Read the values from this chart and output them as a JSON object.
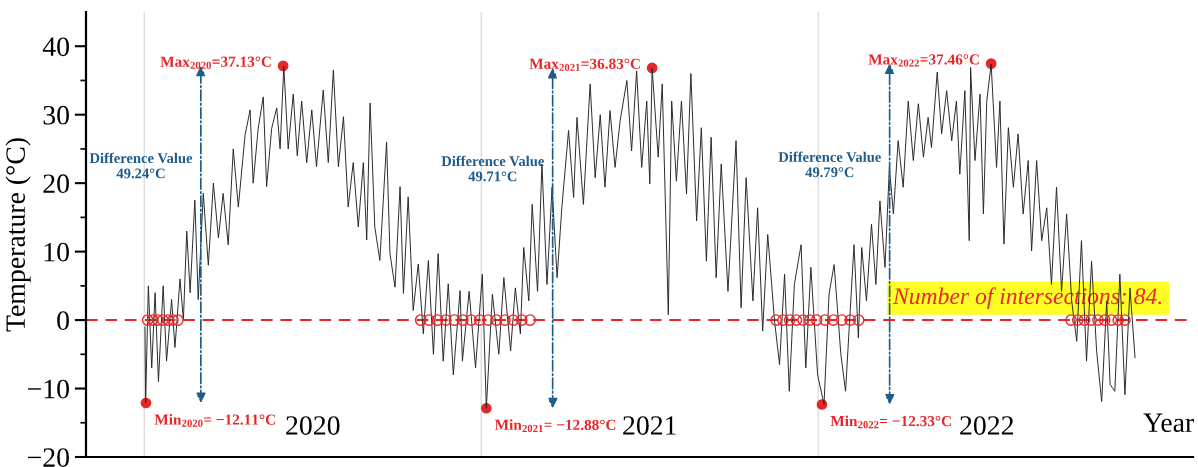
{
  "chart_data": {
    "type": "line",
    "xlabel": "Year",
    "ylabel": "Temperature (°C)",
    "xlim": [
      2019.827,
      2023.112
    ],
    "ylim": [
      -20,
      45
    ],
    "xticks": [
      {
        "value": 2020.5,
        "label": "2020"
      },
      {
        "value": 2021.5,
        "label": "2021"
      },
      {
        "value": 2022.5,
        "label": "2022"
      }
    ],
    "yticks": [
      -20,
      {
        "value": -15,
        "label": null
      },
      -10,
      {
        "value": -5,
        "label": null
      },
      0,
      {
        "value": 5,
        "label": null
      },
      10,
      {
        "value": 15,
        "label": null
      },
      20,
      {
        "value": 25,
        "label": null
      },
      30,
      {
        "value": 35,
        "label": null
      },
      40
    ],
    "grid": false,
    "legend": false,
    "series": [
      {
        "color": "#262626",
        "line_style": "solid",
        "x": [
          2020.002,
          2020.004,
          2020.012,
          2020.022,
          2020.032,
          2020.042,
          2020.056,
          2020.066,
          2020.081,
          2020.091,
          2020.106,
          2020.116,
          2020.126,
          2020.136,
          2020.15,
          2020.16,
          2020.175,
          2020.19,
          2020.205,
          2020.22,
          2020.234,
          2020.249,
          2020.264,
          2020.279,
          2020.299,
          2020.314,
          2020.323,
          2020.338,
          2020.353,
          2020.363,
          2020.378,
          2020.393,
          2020.403,
          2020.414,
          2020.427,
          2020.442,
          2020.454,
          2020.467,
          2020.482,
          2020.497,
          2020.511,
          2020.531,
          2020.546,
          2020.561,
          2020.576,
          2020.591,
          2020.605,
          2020.62,
          2020.635,
          2020.65,
          2020.66,
          2020.67,
          2020.684,
          2020.699,
          2020.719,
          2020.729,
          2020.744,
          2020.759,
          2020.769,
          2020.783,
          2020.798,
          2020.813,
          2020.828,
          2020.843,
          2020.858,
          2020.872,
          2020.887,
          2020.902,
          2020.917,
          2020.937,
          2020.944,
          2020.964,
          2020.983,
          2021.003,
          2021.015,
          2021.033,
          2021.052,
          2021.067,
          2021.087,
          2021.101,
          2021.116,
          2021.126,
          2021.141,
          2021.151,
          2021.167,
          2021.18,
          2021.195,
          2021.21,
          2021.225,
          2021.239,
          2021.259,
          2021.274,
          2021.284,
          2021.303,
          2021.323,
          2021.338,
          2021.353,
          2021.367,
          2021.382,
          2021.397,
          2021.412,
          2021.432,
          2021.446,
          2021.461,
          2021.476,
          2021.491,
          2021.5,
          2021.507,
          2021.525,
          2021.537,
          2021.555,
          2021.565,
          2021.579,
          2021.594,
          2021.609,
          2021.622,
          2021.639,
          2021.653,
          2021.668,
          2021.682,
          2021.697,
          2021.712,
          2021.732,
          2021.756,
          2021.771,
          2021.786,
          2021.806,
          2021.82,
          2021.835,
          2021.85,
          2021.87,
          2021.885,
          2021.9,
          2021.914,
          2021.929,
          2021.949,
          2021.963,
          2021.978,
          2021.998,
          2022.017,
          2022.032,
          2022.047,
          2022.067,
          2022.081,
          2022.106,
          2022.119,
          2022.129,
          2022.143,
          2022.158,
          2022.171,
          2022.183,
          2022.198,
          2022.211,
          2022.223,
          2022.237,
          2022.252,
          2022.267,
          2022.282,
          2022.297,
          2022.312,
          2022.326,
          2022.336,
          2022.353,
          2022.366,
          2022.381,
          2022.396,
          2022.41,
          2022.42,
          2022.435,
          2022.448,
          2022.452,
          2022.465,
          2022.48,
          2022.49,
          2022.5,
          2022.513,
          2022.529,
          2022.539,
          2022.551,
          2022.564,
          2022.579,
          2022.593,
          2022.608,
          2022.623,
          2022.633,
          2022.648,
          2022.663,
          2022.678,
          2022.692,
          2022.707,
          2022.722,
          2022.737,
          2022.752,
          2022.767,
          2022.781,
          2022.796,
          2022.811,
          2022.826,
          2022.841,
          2022.856,
          2022.866,
          2022.88,
          2022.895,
          2022.91,
          2022.925,
          2022.94
        ],
        "values": [
          -1,
          -12.1,
          5,
          -7,
          4,
          -9,
          5,
          -6,
          3,
          -4,
          6,
          0,
          13,
          4,
          17.5,
          3,
          18.5,
          8,
          20,
          12,
          18.5,
          11,
          25,
          16.5,
          27,
          30.7,
          20,
          28,
          32.6,
          19.5,
          28,
          31,
          25,
          37.1,
          25,
          33,
          24,
          32,
          23,
          30.7,
          22.4,
          33.6,
          23,
          36.5,
          22.4,
          29.7,
          16.5,
          23,
          13.6,
          23,
          11.7,
          31.7,
          13.6,
          8.7,
          26,
          9.7,
          4.8,
          19.5,
          3.9,
          18,
          1.4,
          8.2,
          -2,
          8.7,
          -5,
          9.7,
          -6,
          5.3,
          -8,
          4.3,
          -6,
          4.2,
          -7,
          6.7,
          -12.9,
          3.8,
          -5,
          6.2,
          -4.5,
          4.7,
          -2,
          10.6,
          2.8,
          16.9,
          4.2,
          22.8,
          5.2,
          19.4,
          6.2,
          16.4,
          27.7,
          17.9,
          29.6,
          16.9,
          34.5,
          20.8,
          30,
          19.4,
          30.6,
          22.3,
          29.1,
          35,
          24.7,
          36.4,
          22.3,
          32,
          19.9,
          36.8,
          23.8,
          34.5,
          0.8,
          32,
          20.3,
          32,
          18.4,
          36,
          14.5,
          28.1,
          8.6,
          26.7,
          6.2,
          22.8,
          4.2,
          26.2,
          1.8,
          20.8,
          2.8,
          16.4,
          -1.6,
          12.5,
          0,
          -6.5,
          6.7,
          -10.4,
          5.2,
          11,
          -7,
          7.7,
          -8,
          -12.3,
          3.8,
          8.1,
          -5,
          -10.4,
          11,
          -2.6,
          10.6,
          2.8,
          14,
          5.2,
          17.4,
          7.7,
          22.3,
          15.5,
          26.2,
          19.4,
          32,
          23.3,
          31.6,
          23.8,
          29.6,
          25.2,
          36.2,
          27.2,
          33.5,
          26.2,
          32,
          21.3,
          33.5,
          11.6,
          36.9,
          23.3,
          33,
          15.5,
          32,
          37.4,
          22.3,
          32,
          11.1,
          28.1,
          19.4,
          27.2,
          15.5,
          23.3,
          10.1,
          23.3,
          11.6,
          16.4,
          5.2,
          19.4,
          4.2,
          15.5,
          2.8,
          -3.1,
          11.6,
          -6,
          8.6,
          -4.5,
          -11.9,
          2.8,
          -9.4,
          -10.4,
          6.7,
          -10.9,
          4.7,
          -5.5
        ]
      },
      {
        "type": "scatter",
        "color": "#e8262a",
        "marker": "circle",
        "x": [
          2020.01,
          2020.025,
          2020.04,
          2020.055,
          2020.07,
          2020.085,
          2020.1,
          2020.82,
          2020.845,
          2020.87,
          2020.895,
          2020.92,
          2020.945,
          2020.97,
          2020.995,
          2021.02,
          2021.045,
          2021.07,
          2021.095,
          2021.12,
          2021.145,
          2021.875,
          2021.895,
          2021.915,
          2021.935,
          2021.955,
          2021.975,
          2021.995,
          2022.02,
          2022.045,
          2022.07,
          2022.095,
          2022.12,
          2022.75,
          2022.77,
          2022.79,
          2022.81,
          2022.83,
          2022.85,
          2022.87,
          2022.89,
          2022.91
        ],
        "values": [
          0,
          0,
          0,
          0,
          0,
          0,
          0,
          0,
          0,
          0,
          0,
          0,
          0,
          0,
          0,
          0,
          0,
          0,
          0,
          0,
          0,
          0,
          0,
          0,
          0,
          0,
          0,
          0,
          0,
          0,
          0,
          0,
          0,
          0,
          0,
          0,
          0,
          0,
          0,
          0,
          0,
          0
        ]
      },
      {
        "type": "scatter",
        "color": "#e8262a",
        "marker": "circle",
        "x": [
          2020.005,
          2020.412,
          2021.015,
          2021.507,
          2022.011,
          2022.513
        ],
        "values": [
          -12.11,
          37.13,
          -12.88,
          36.83,
          -12.33,
          37.46
        ],
        "value_labels": [
          "Min$_{2020}$= −12.11°C",
          "Max$_{2020}$=37.13°C",
          "Min$_{2021}$= −12.88°C",
          "Max$_{2021}$=36.83°C",
          "Min$_{2022}$= −12.33°C",
          "Max$_{2022}$=37.46°C"
        ]
      }
    ],
    "ref_lines": [
      {
        "axis": "y",
        "value": 0,
        "color": "#e8262a",
        "line_style": "dashed"
      },
      {
        "axis": "x",
        "value": 2020,
        "color": "#dddddd",
        "line_style": "solid"
      },
      {
        "axis": "x",
        "value": 2021,
        "color": "#dddddd",
        "line_style": "solid"
      },
      {
        "axis": "x",
        "value": 2022,
        "color": "#dddddd",
        "line_style": "solid"
      }
    ],
    "annotations": [
      "Difference Value\n49.24°C",
      "Difference Value\n49.71°C",
      "Difference Value\n49.79°C",
      "Number of intersections: 84."
    ]
  }
}
